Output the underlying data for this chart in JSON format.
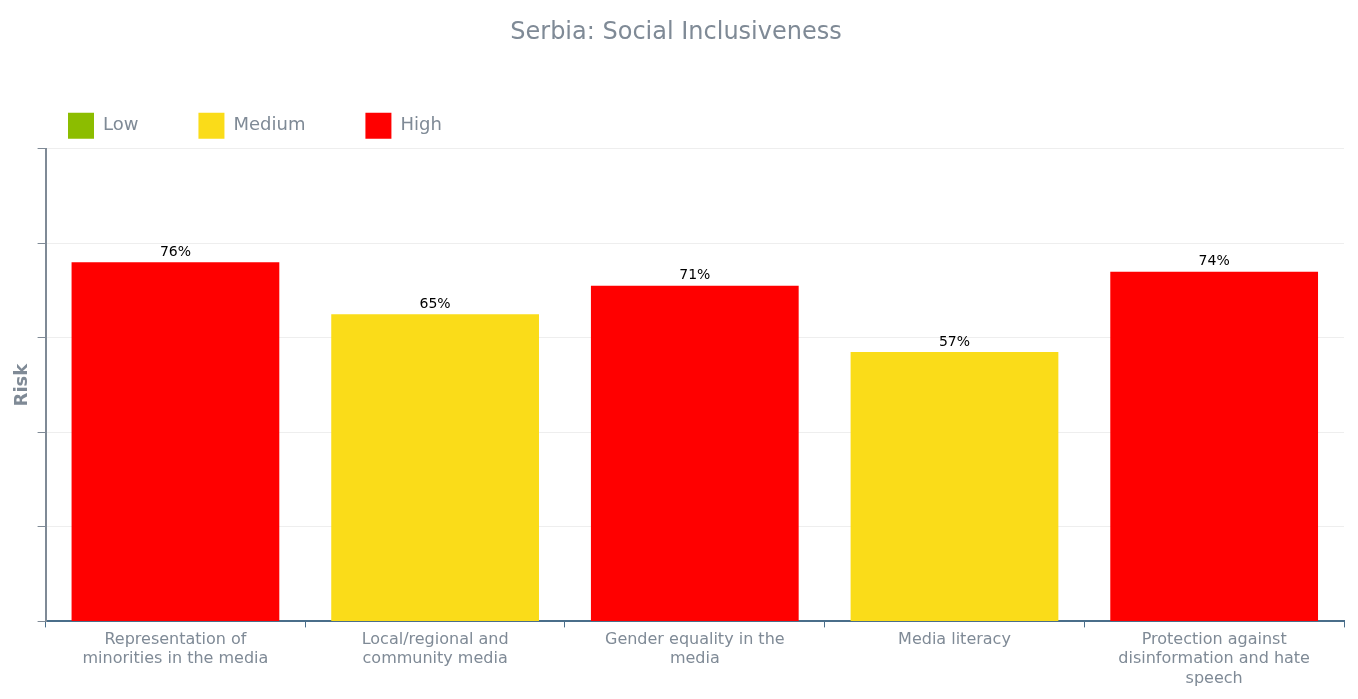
{
  "chart_data": {
    "type": "bar",
    "title": "Serbia: Social Inclusiveness",
    "ylabel": "Risk",
    "categories": [
      "Representation of minorities in the media",
      "Local/regional and community media",
      "Gender equality in the media",
      "Media literacy",
      "Protection against disinformation and hate speech"
    ],
    "stacked": true,
    "series": [
      {
        "name": "Low",
        "color": "#8cbd00",
        "values": [
          null,
          null,
          null,
          null,
          null
        ],
        "value_labels": [
          null,
          null,
          null,
          null,
          null
        ]
      },
      {
        "name": "Medium",
        "color": "#fadc19",
        "values": [
          null,
          65,
          null,
          57,
          null
        ],
        "value_labels": [
          null,
          "65%",
          null,
          "57%",
          null
        ]
      },
      {
        "name": "High",
        "color": "#ff0000",
        "values": [
          76,
          null,
          71,
          null,
          74
        ],
        "value_labels": [
          "76%",
          null,
          "71%",
          null,
          "74%"
        ]
      }
    ],
    "ylim": [
      0,
      100
    ],
    "yticks": [
      {
        "value": 0,
        "label": null
      },
      {
        "value": 20,
        "label": null
      },
      {
        "value": 40,
        "label": null
      },
      {
        "value": 60,
        "label": null
      },
      {
        "value": 80,
        "label": null
      },
      {
        "value": 100,
        "label": null
      }
    ],
    "tick_labels": "x",
    "grid": "y",
    "legend": "top left"
  }
}
